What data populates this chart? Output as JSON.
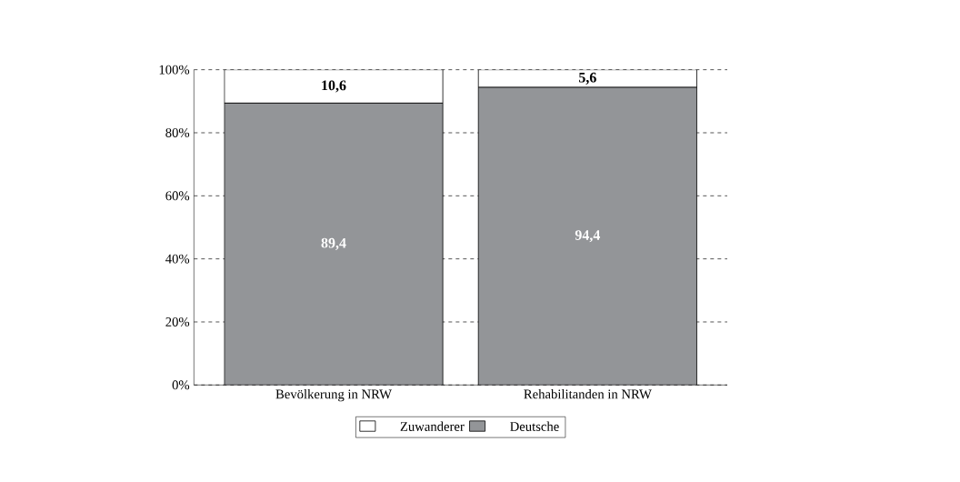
{
  "chart_data": {
    "type": "bar",
    "stacked": true,
    "categories": [
      "Bevölkerung in NRW",
      "Rehabilitanden in NRW"
    ],
    "series": [
      {
        "name": "Deutsche",
        "color": "#939598",
        "values": [
          89.4,
          94.4
        ],
        "value_labels": [
          "89,4",
          "94,4"
        ]
      },
      {
        "name": "Zuwanderer",
        "color": "#ffffff",
        "values": [
          10.6,
          5.6
        ],
        "value_labels": [
          "10,6",
          "5,6"
        ]
      }
    ],
    "ylim": [
      0,
      100
    ],
    "yticks": [
      {
        "value": 0,
        "label": "0%"
      },
      {
        "value": 20,
        "label": "20%"
      },
      {
        "value": 40,
        "label": "40%"
      },
      {
        "value": 60,
        "label": "60%"
      },
      {
        "value": 80,
        "label": "80%"
      },
      {
        "value": 100,
        "label": "100%"
      }
    ],
    "grid": "y",
    "legend": "bottom"
  }
}
